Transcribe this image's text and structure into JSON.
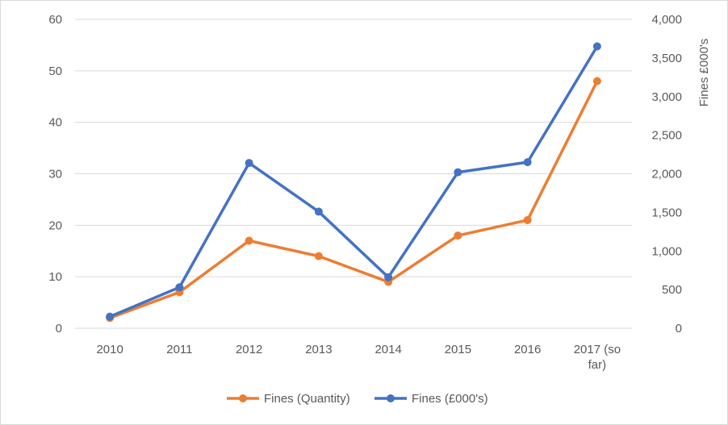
{
  "chart_data": {
    "type": "line",
    "categories": [
      "2010",
      "2011",
      "2012",
      "2013",
      "2014",
      "2015",
      "2016",
      "2017 (so far)"
    ],
    "category_lines": [
      [
        "2010"
      ],
      [
        "2011"
      ],
      [
        "2012"
      ],
      [
        "2013"
      ],
      [
        "2014"
      ],
      [
        "2015"
      ],
      [
        "2016"
      ],
      [
        "2017 (so",
        "far)"
      ]
    ],
    "series": [
      {
        "name": "Fines (Quantity)",
        "axis": "left",
        "color": "#ed7d31",
        "values": [
          2,
          7,
          17,
          14,
          9,
          18,
          21,
          48
        ]
      },
      {
        "name": "Fines (£000's)",
        "axis": "right",
        "color": "#4472c4",
        "values": [
          150,
          530,
          2140,
          1510,
          660,
          2020,
          2150,
          3650
        ]
      }
    ],
    "y_left": {
      "min": 0,
      "max": 60,
      "ticks": [
        "0",
        "10",
        "20",
        "30",
        "40",
        "50",
        "60"
      ]
    },
    "y_right": {
      "min": 0,
      "max": 4000,
      "label": "Fines  £000's",
      "ticks": [
        "0",
        "500",
        "1,000",
        "1,500",
        "2,000",
        "2,500",
        "3,000",
        "3,500",
        "4,000"
      ]
    },
    "grid": true,
    "legend": "bottom"
  }
}
